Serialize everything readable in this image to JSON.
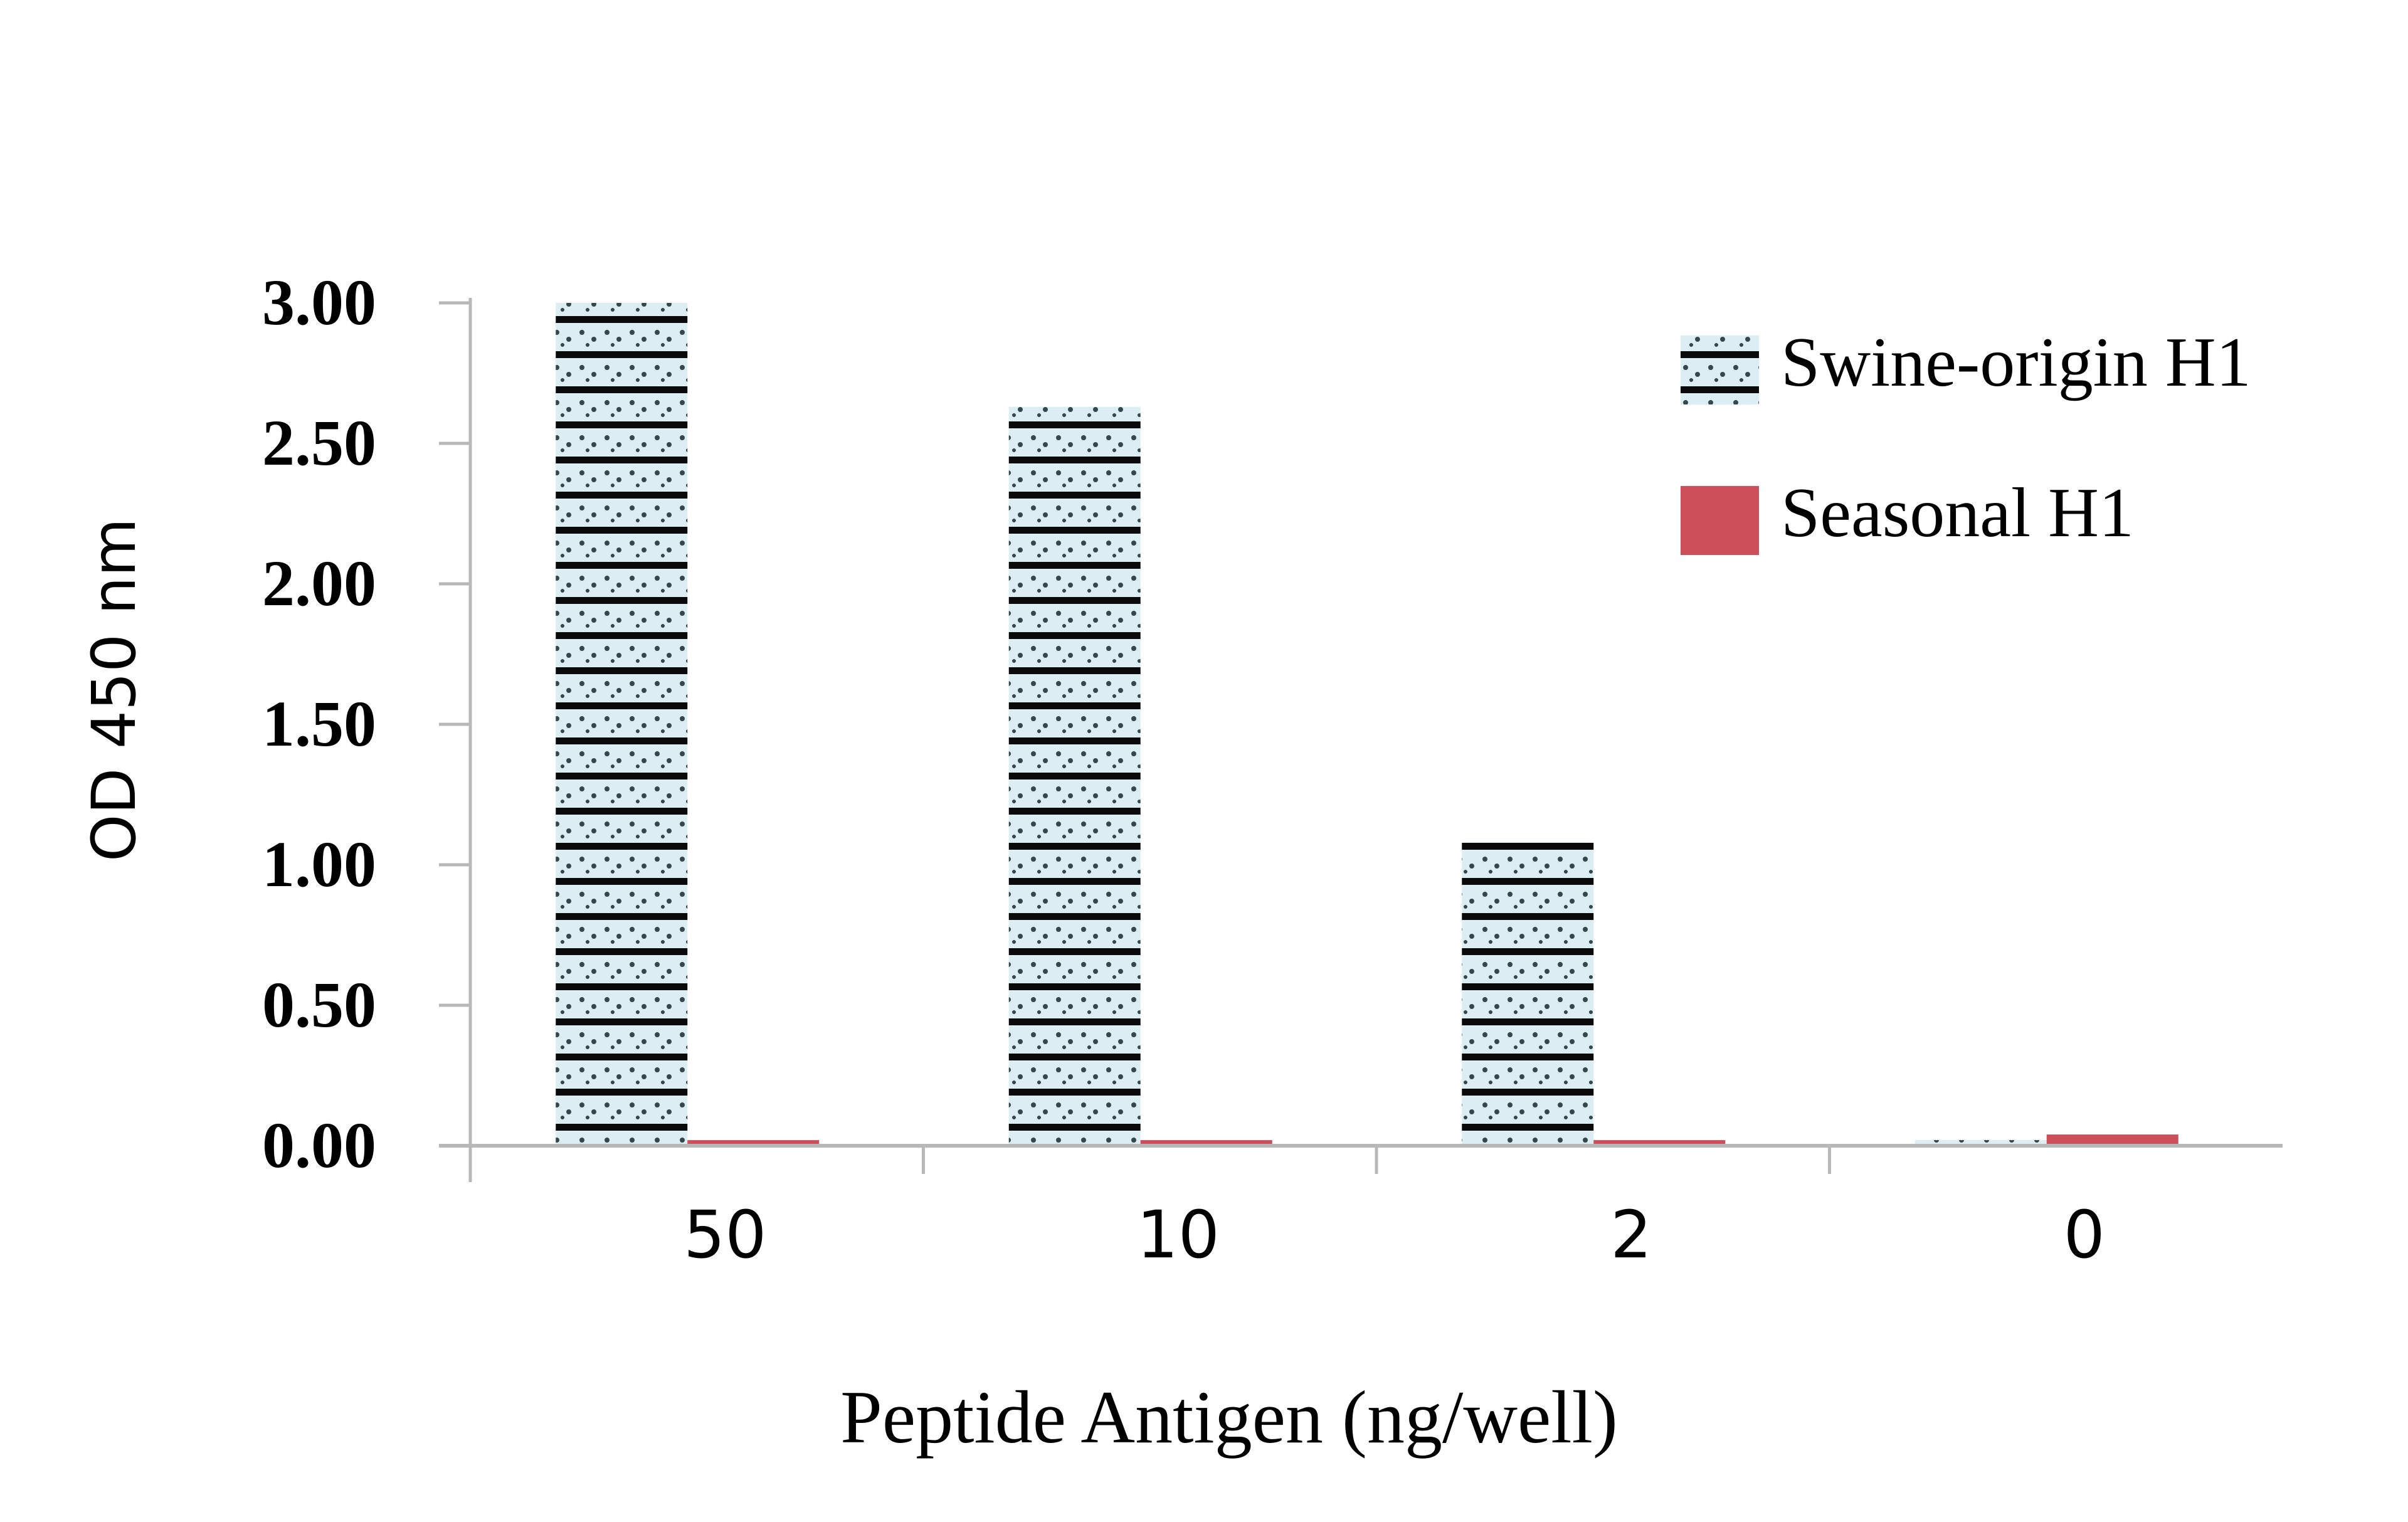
{
  "chart_data": {
    "type": "bar",
    "title": "",
    "xlabel": "Peptide Antigen (ng/well)",
    "ylabel": "OD 450 nm",
    "categories": [
      "50",
      "10",
      "2",
      "0"
    ],
    "ylim": [
      0,
      3.0
    ],
    "yticks": [
      "0.00",
      "0.50",
      "1.00",
      "1.50",
      "2.00",
      "2.50",
      "3.00"
    ],
    "grid": false,
    "legend_position": "top-right",
    "series": [
      {
        "name": "Swine-origin H1",
        "values": [
          3.0,
          2.63,
          1.08,
          0.02
        ],
        "color": "#dceef3",
        "pattern": "dotted-striped"
      },
      {
        "name": "Seasonal H1",
        "values": [
          0.02,
          0.02,
          0.02,
          0.04
        ],
        "color": "#cc4f5a"
      }
    ]
  }
}
